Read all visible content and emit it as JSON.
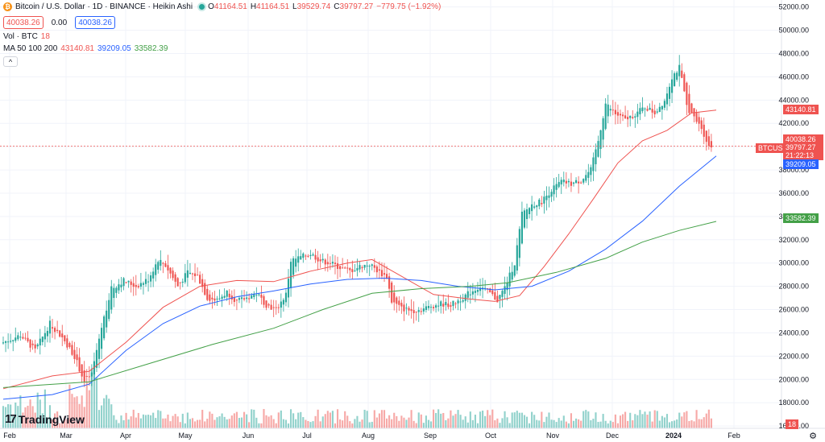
{
  "header": {
    "title": "Bitcoin / U.S. Dollar · 1D · BINANCE · Heikin Ashi",
    "coin_glyph": "₿",
    "ohlc": [
      {
        "k": "O",
        "v": "41164.51"
      },
      {
        "k": "H",
        "v": "41164.51"
      },
      {
        "k": "L",
        "v": "39529.74"
      },
      {
        "k": "C",
        "v": "39797.27"
      }
    ],
    "change": "−779.75 (−1.92%)",
    "bid": "40038.26",
    "spread": "0.00",
    "ask": "40038.26"
  },
  "volume_legend": {
    "label": "Vol · BTC",
    "value": "18"
  },
  "ma_legend": {
    "label": "MA 50 100 200",
    "ma50": "43140.81",
    "ma100": "39209.05",
    "ma200": "33582.39"
  },
  "collapse_glyph": "^",
  "logo": {
    "mark": "17",
    "text": "TradingView"
  },
  "price_tags": {
    "ma50": "43140.81",
    "last": "40038.26",
    "symbol": "BTCUSD",
    "close": "39797.27",
    "countdown": "21:22:13",
    "ma100": "39209.05",
    "ma200": "33582.39",
    "volume": "18"
  },
  "colors": {
    "up": "#26a69a",
    "down": "#ef5350",
    "ma50": "#ef5350",
    "ma100": "#2962ff",
    "ma200": "#43a047",
    "grid": "#f0f3fa",
    "axis_text": "#131722"
  },
  "chart_data": {
    "type": "candlestick",
    "title": "Bitcoin / U.S. Dollar · 1D · BINANCE · Heikin Ashi",
    "x_labels": [
      "Feb",
      "Mar",
      "Apr",
      "May",
      "Jun",
      "Jul",
      "Aug",
      "Sep",
      "Oct",
      "Nov",
      "Dec",
      "2024",
      "Feb"
    ],
    "y_ticks": [
      16000,
      18000,
      20000,
      22000,
      24000,
      26000,
      28000,
      30000,
      32000,
      34000,
      36000,
      38000,
      40000,
      42000,
      44000,
      46000,
      48000,
      50000,
      52000
    ],
    "ylim": [
      15800,
      52600
    ],
    "close_path": [
      [
        0,
        23100
      ],
      [
        8,
        23800
      ],
      [
        14,
        22500
      ],
      [
        20,
        24800
      ],
      [
        25,
        23600
      ],
      [
        30,
        22000
      ],
      [
        34,
        19800
      ],
      [
        37,
        20500
      ],
      [
        41,
        24500
      ],
      [
        45,
        27800
      ],
      [
        50,
        28500
      ],
      [
        55,
        28000
      ],
      [
        60,
        28600
      ],
      [
        64,
        30300
      ],
      [
        67,
        29800
      ],
      [
        72,
        28000
      ],
      [
        76,
        29200
      ],
      [
        80,
        28900
      ],
      [
        84,
        27000
      ],
      [
        88,
        26800
      ],
      [
        92,
        27500
      ],
      [
        96,
        26700
      ],
      [
        100,
        27000
      ],
      [
        104,
        27400
      ],
      [
        108,
        26400
      ],
      [
        112,
        26000
      ],
      [
        116,
        27300
      ],
      [
        118,
        30200
      ],
      [
        122,
        30500
      ],
      [
        126,
        30800
      ],
      [
        130,
        30200
      ],
      [
        134,
        30000
      ],
      [
        138,
        29600
      ],
      [
        142,
        29300
      ],
      [
        146,
        29700
      ],
      [
        150,
        29900
      ],
      [
        154,
        29200
      ],
      [
        157,
        28800
      ],
      [
        159,
        26700
      ],
      [
        163,
        26100
      ],
      [
        167,
        25900
      ],
      [
        171,
        26000
      ],
      [
        175,
        26300
      ],
      [
        179,
        26500
      ],
      [
        183,
        26400
      ],
      [
        187,
        26900
      ],
      [
        191,
        27500
      ],
      [
        195,
        28000
      ],
      [
        199,
        27400
      ],
      [
        202,
        26800
      ],
      [
        205,
        27900
      ],
      [
        209,
        30000
      ],
      [
        212,
        34200
      ],
      [
        216,
        35000
      ],
      [
        220,
        35300
      ],
      [
        224,
        36300
      ],
      [
        228,
        37000
      ],
      [
        232,
        36800
      ],
      [
        236,
        37100
      ],
      [
        240,
        38000
      ],
      [
        243,
        40500
      ],
      [
        246,
        43700
      ],
      [
        250,
        42800
      ],
      [
        254,
        42300
      ],
      [
        258,
        42800
      ],
      [
        262,
        43400
      ],
      [
        266,
        42900
      ],
      [
        270,
        44000
      ],
      [
        273,
        46000
      ],
      [
        276,
        46800
      ],
      [
        279,
        43500
      ],
      [
        282,
        42400
      ],
      [
        285,
        41600
      ],
      [
        288,
        40000
      ]
    ],
    "series": [
      {
        "name": "MA 50",
        "values": [
          [
            0,
            19200
          ],
          [
            20,
            20300
          ],
          [
            35,
            20700
          ],
          [
            50,
            23200
          ],
          [
            65,
            26200
          ],
          [
            80,
            28000
          ],
          [
            95,
            28500
          ],
          [
            110,
            28400
          ],
          [
            125,
            29300
          ],
          [
            140,
            30000
          ],
          [
            150,
            30300
          ],
          [
            160,
            29100
          ],
          [
            175,
            27300
          ],
          [
            190,
            26900
          ],
          [
            200,
            26700
          ],
          [
            210,
            27200
          ],
          [
            220,
            29700
          ],
          [
            230,
            32500
          ],
          [
            240,
            35500
          ],
          [
            250,
            38600
          ],
          [
            260,
            40500
          ],
          [
            270,
            41400
          ],
          [
            280,
            42900
          ],
          [
            290,
            43140
          ]
        ]
      },
      {
        "name": "MA 100",
        "values": [
          [
            0,
            18300
          ],
          [
            20,
            18700
          ],
          [
            35,
            19600
          ],
          [
            50,
            22500
          ],
          [
            65,
            24800
          ],
          [
            80,
            26300
          ],
          [
            95,
            27100
          ],
          [
            110,
            27600
          ],
          [
            125,
            28200
          ],
          [
            140,
            28600
          ],
          [
            155,
            28700
          ],
          [
            170,
            28500
          ],
          [
            185,
            28000
          ],
          [
            200,
            27700
          ],
          [
            215,
            28000
          ],
          [
            230,
            29300
          ],
          [
            245,
            31200
          ],
          [
            260,
            33600
          ],
          [
            275,
            36600
          ],
          [
            290,
            39200
          ]
        ]
      },
      {
        "name": "MA 200",
        "values": [
          [
            0,
            19300
          ],
          [
            35,
            19800
          ],
          [
            60,
            21400
          ],
          [
            85,
            23000
          ],
          [
            110,
            24400
          ],
          [
            130,
            26000
          ],
          [
            150,
            27400
          ],
          [
            170,
            27800
          ],
          [
            190,
            28000
          ],
          [
            205,
            28300
          ],
          [
            225,
            29200
          ],
          [
            245,
            30400
          ],
          [
            260,
            31800
          ],
          [
            275,
            32800
          ],
          [
            290,
            33580
          ]
        ]
      }
    ]
  }
}
